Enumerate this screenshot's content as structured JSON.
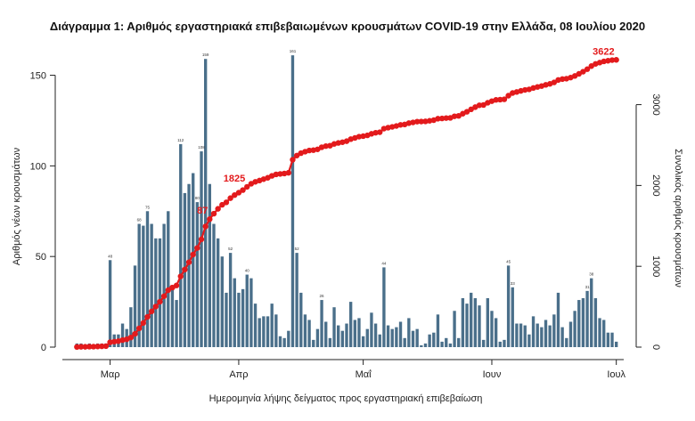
{
  "chart_data": {
    "type": "bar+line",
    "title": "Διάγραμμα 1: Αριθμός εργαστηριακά επιβεβαιωμένων κρουσμάτων COVID-19 στην Ελλάδα, 08 Ιουλίου 2020",
    "xlabel": "Ημερομηνία λήψης δείγματος προς εργαστηριακή επιβεβαίωση",
    "ylabel_left": "Αριθμός νέων κρουσμάτων",
    "ylabel_right": "Συνολικός αριθμός κρουσμάτων",
    "ylim_left": [
      0,
      165
    ],
    "ylim_right": [
      0,
      3700
    ],
    "left_ticks": [
      0,
      50,
      100,
      150
    ],
    "left_tick_labels": [
      "0",
      "50",
      "100",
      "150"
    ],
    "right_ticks": [
      0,
      1000,
      2000,
      3000
    ],
    "right_tick_labels": [
      "0",
      "1000",
      "2000",
      "3000"
    ],
    "x_ticks": [
      {
        "label": "Μαρ",
        "index": 8
      },
      {
        "label": "Απρ",
        "index": 39
      },
      {
        "label": "Μαΐ",
        "index": 69
      },
      {
        "label": "Ιουν",
        "index": 100
      },
      {
        "label": "Ιουλ",
        "index": 130
      }
    ],
    "daily_values": [
      2,
      2,
      0,
      2,
      0,
      2,
      2,
      2,
      48,
      7,
      7,
      13,
      10,
      22,
      45,
      68,
      67,
      75,
      68,
      60,
      60,
      68,
      75,
      32,
      26,
      112,
      85,
      90,
      96,
      80,
      108,
      159,
      90,
      68,
      60,
      50,
      30,
      52,
      38,
      30,
      32,
      40,
      38,
      24,
      16,
      17,
      17,
      24,
      18,
      6,
      5,
      9,
      161,
      52,
      30,
      18,
      15,
      4,
      10,
      26,
      14,
      5,
      22,
      12,
      9,
      13,
      25,
      15,
      16,
      6,
      10,
      19,
      13,
      7,
      44,
      12,
      10,
      11,
      14,
      5,
      16,
      9,
      10,
      1,
      2,
      7,
      8,
      18,
      3,
      5,
      2,
      20,
      5,
      27,
      24,
      30,
      27,
      23,
      4,
      27,
      20,
      16,
      3,
      4,
      45,
      33,
      13,
      13,
      12,
      7,
      17,
      13,
      11,
      15,
      12,
      18,
      30,
      11,
      5,
      14,
      20,
      26,
      27,
      31,
      38,
      27,
      16,
      15,
      8,
      8,
      3
    ],
    "bar_labels": {
      "8": "48",
      "15": "68",
      "17": "75",
      "25": "112",
      "29": "80",
      "30": "108",
      "31": "159",
      "37": "52",
      "41": "40",
      "52": "161",
      "53": "52",
      "59": "26",
      "74": "44",
      "104": "45",
      "105": "33",
      "123": "31",
      "124": "38"
    },
    "cumulative_annotations": [
      {
        "index": 32,
        "label": "87"
      },
      {
        "index": 41,
        "label": "1825"
      },
      {
        "index": 136,
        "label": "3622"
      }
    ],
    "colors": {
      "bars": "#4a6f8a",
      "cumulative_line": "#e31a1c",
      "cumulative_label": "#e31a1c"
    }
  }
}
